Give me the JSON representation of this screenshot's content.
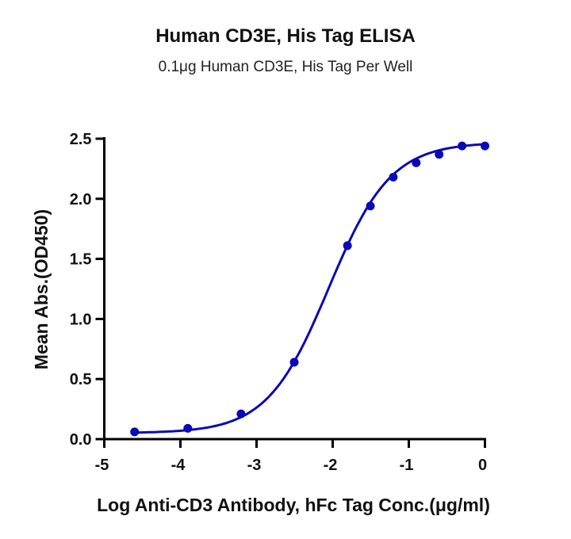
{
  "chart_data": {
    "type": "scatter",
    "title": "Human CD3E, His Tag ELISA",
    "subtitle": "0.1μg Human CD3E, His Tag Per Well",
    "xlabel": "Log Anti-CD3 Antibody, hFc Tag Conc.(μg/ml)",
    "ylabel": "Mean Abs.(OD450)",
    "xlim": [
      -5,
      0
    ],
    "ylim": [
      0,
      2.5
    ],
    "xticks": [
      "-5",
      "-4",
      "-3",
      "-2",
      "-1",
      "0"
    ],
    "yticks": [
      "0.0",
      "0.5",
      "1.0",
      "1.5",
      "2.0",
      "2.5"
    ],
    "grid": false,
    "fit": "sigmoidal curve",
    "color": "#0a0ab4",
    "series": [
      {
        "x": [
          -4.602,
          -3.903,
          -3.204,
          -2.505,
          -1.806,
          -1.505,
          -1.204,
          -0.903,
          -0.602,
          -0.301,
          0
        ],
        "y": [
          0.06,
          0.09,
          0.21,
          0.64,
          1.61,
          1.94,
          2.18,
          2.3,
          2.37,
          2.44,
          2.44
        ]
      }
    ]
  }
}
